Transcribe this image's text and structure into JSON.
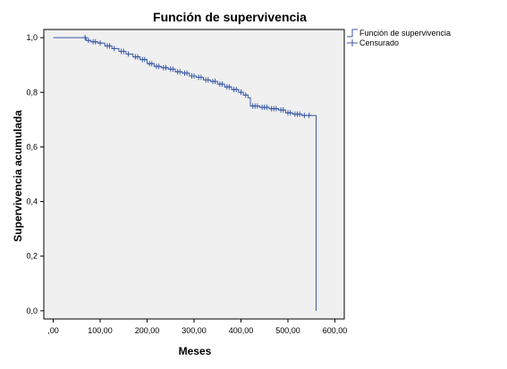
{
  "chart_data": {
    "type": "line",
    "title": "Función de supervivencia",
    "xlabel": "Meses",
    "ylabel": "Supervivencia acumulada",
    "xlim": [
      -20,
      620
    ],
    "ylim": [
      -0.03,
      1.03
    ],
    "x_ticks": [
      0,
      100,
      200,
      300,
      400,
      500,
      600
    ],
    "x_tick_labels": [
      ",00",
      "100,00",
      "200,00",
      "300,00",
      "400,00",
      "500,00",
      "600,00"
    ],
    "y_ticks": [
      0,
      0.2,
      0.4,
      0.6,
      0.8,
      1.0
    ],
    "y_tick_labels": [
      "0,0",
      "0,2",
      "0,4",
      "0,6",
      "0,8",
      "1,0"
    ],
    "grid": false,
    "legend_position": "top-right",
    "colors": {
      "series": "#3a5aa8",
      "plot_bg": "#f0f0f0",
      "axis": "#000000"
    },
    "series": [
      {
        "name": "Función de supervivencia",
        "step": true,
        "x": [
          0,
          65,
          70,
          80,
          95,
          110,
          125,
          140,
          155,
          170,
          185,
          200,
          215,
          230,
          245,
          260,
          275,
          290,
          305,
          320,
          335,
          350,
          365,
          380,
          395,
          405,
          415,
          420,
          440,
          460,
          480,
          495,
          510,
          530,
          560,
          560
        ],
        "y": [
          1.0,
          1.0,
          0.99,
          0.985,
          0.98,
          0.97,
          0.96,
          0.95,
          0.94,
          0.93,
          0.92,
          0.905,
          0.895,
          0.89,
          0.885,
          0.875,
          0.87,
          0.86,
          0.855,
          0.845,
          0.84,
          0.83,
          0.82,
          0.81,
          0.8,
          0.79,
          0.78,
          0.75,
          0.745,
          0.74,
          0.735,
          0.725,
          0.72,
          0.715,
          0.715,
          0.0
        ]
      },
      {
        "name": "Censurado",
        "x": [
          68,
          75,
          85,
          90,
          100,
          115,
          120,
          130,
          145,
          150,
          160,
          175,
          180,
          190,
          195,
          205,
          210,
          220,
          225,
          235,
          240,
          250,
          255,
          265,
          270,
          280,
          285,
          295,
          300,
          310,
          315,
          325,
          330,
          340,
          345,
          355,
          360,
          370,
          375,
          385,
          390,
          400,
          410,
          425,
          430,
          435,
          445,
          450,
          455,
          465,
          470,
          475,
          485,
          490,
          500,
          505,
          515,
          520,
          525,
          535,
          545
        ],
        "y": [
          1.0,
          0.99,
          0.985,
          0.985,
          0.98,
          0.97,
          0.97,
          0.96,
          0.95,
          0.95,
          0.94,
          0.93,
          0.93,
          0.92,
          0.92,
          0.905,
          0.905,
          0.895,
          0.895,
          0.89,
          0.89,
          0.885,
          0.885,
          0.875,
          0.875,
          0.87,
          0.87,
          0.86,
          0.86,
          0.855,
          0.855,
          0.845,
          0.845,
          0.84,
          0.84,
          0.83,
          0.83,
          0.82,
          0.82,
          0.81,
          0.81,
          0.8,
          0.79,
          0.75,
          0.75,
          0.75,
          0.745,
          0.745,
          0.745,
          0.74,
          0.74,
          0.74,
          0.735,
          0.735,
          0.725,
          0.725,
          0.72,
          0.72,
          0.72,
          0.715,
          0.715
        ]
      }
    ]
  }
}
